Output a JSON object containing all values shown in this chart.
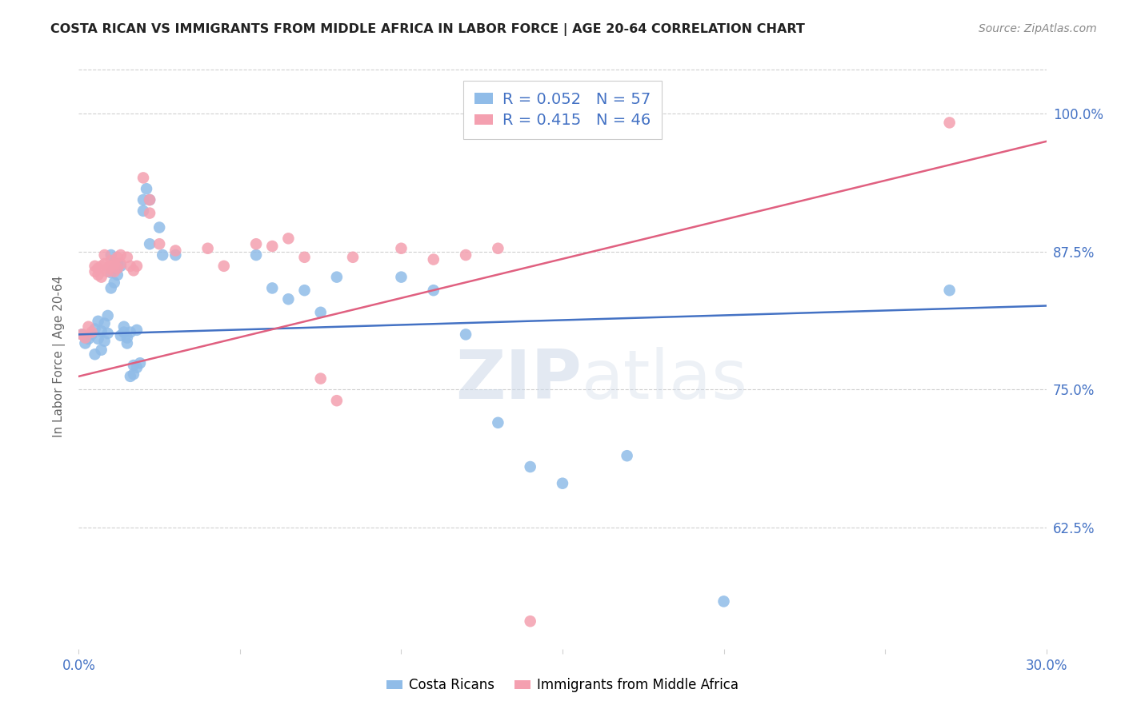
{
  "title": "COSTA RICAN VS IMMIGRANTS FROM MIDDLE AFRICA IN LABOR FORCE | AGE 20-64 CORRELATION CHART",
  "source": "Source: ZipAtlas.com",
  "ylabel": "In Labor Force | Age 20-64",
  "xlim": [
    0.0,
    0.3
  ],
  "ylim": [
    0.515,
    1.045
  ],
  "yticks": [
    0.625,
    0.75,
    0.875,
    1.0
  ],
  "ytick_labels": [
    "62.5%",
    "75.0%",
    "87.5%",
    "100.0%"
  ],
  "xticks": [
    0.0,
    0.05,
    0.1,
    0.15,
    0.2,
    0.25,
    0.3
  ],
  "xtick_labels": [
    "0.0%",
    "",
    "",
    "",
    "",
    "",
    "30.0%"
  ],
  "legend_r1": "R = 0.052",
  "legend_n1": "N = 57",
  "legend_r2": "R = 0.415",
  "legend_n2": "N = 46",
  "blue_color": "#90bce8",
  "pink_color": "#f4a0b0",
  "blue_line_color": "#4472c4",
  "pink_line_color": "#e06080",
  "blue_scatter": [
    [
      0.001,
      0.8
    ],
    [
      0.002,
      0.792
    ],
    [
      0.003,
      0.796
    ],
    [
      0.004,
      0.8
    ],
    [
      0.005,
      0.805
    ],
    [
      0.005,
      0.782
    ],
    [
      0.006,
      0.812
    ],
    [
      0.006,
      0.796
    ],
    [
      0.007,
      0.803
    ],
    [
      0.007,
      0.786
    ],
    [
      0.008,
      0.81
    ],
    [
      0.008,
      0.794
    ],
    [
      0.009,
      0.801
    ],
    [
      0.009,
      0.817
    ],
    [
      0.01,
      0.856
    ],
    [
      0.01,
      0.842
    ],
    [
      0.01,
      0.872
    ],
    [
      0.011,
      0.86
    ],
    [
      0.011,
      0.847
    ],
    [
      0.012,
      0.864
    ],
    [
      0.012,
      0.854
    ],
    [
      0.013,
      0.862
    ],
    [
      0.013,
      0.799
    ],
    [
      0.014,
      0.802
    ],
    [
      0.014,
      0.807
    ],
    [
      0.015,
      0.797
    ],
    [
      0.015,
      0.792
    ],
    [
      0.016,
      0.802
    ],
    [
      0.016,
      0.762
    ],
    [
      0.017,
      0.772
    ],
    [
      0.017,
      0.764
    ],
    [
      0.018,
      0.804
    ],
    [
      0.018,
      0.77
    ],
    [
      0.019,
      0.774
    ],
    [
      0.02,
      0.912
    ],
    [
      0.02,
      0.922
    ],
    [
      0.021,
      0.932
    ],
    [
      0.022,
      0.922
    ],
    [
      0.022,
      0.882
    ],
    [
      0.025,
      0.897
    ],
    [
      0.026,
      0.872
    ],
    [
      0.03,
      0.872
    ],
    [
      0.055,
      0.872
    ],
    [
      0.06,
      0.842
    ],
    [
      0.065,
      0.832
    ],
    [
      0.07,
      0.84
    ],
    [
      0.075,
      0.82
    ],
    [
      0.08,
      0.852
    ],
    [
      0.1,
      0.852
    ],
    [
      0.11,
      0.84
    ],
    [
      0.12,
      0.8
    ],
    [
      0.13,
      0.72
    ],
    [
      0.14,
      0.68
    ],
    [
      0.15,
      0.665
    ],
    [
      0.17,
      0.69
    ],
    [
      0.2,
      0.558
    ],
    [
      0.27,
      0.84
    ]
  ],
  "pink_scatter": [
    [
      0.001,
      0.8
    ],
    [
      0.002,
      0.797
    ],
    [
      0.003,
      0.807
    ],
    [
      0.004,
      0.802
    ],
    [
      0.005,
      0.862
    ],
    [
      0.005,
      0.857
    ],
    [
      0.006,
      0.86
    ],
    [
      0.006,
      0.854
    ],
    [
      0.007,
      0.862
    ],
    [
      0.007,
      0.852
    ],
    [
      0.008,
      0.872
    ],
    [
      0.008,
      0.864
    ],
    [
      0.009,
      0.86
    ],
    [
      0.009,
      0.857
    ],
    [
      0.01,
      0.862
    ],
    [
      0.01,
      0.867
    ],
    [
      0.011,
      0.864
    ],
    [
      0.011,
      0.857
    ],
    [
      0.012,
      0.87
    ],
    [
      0.012,
      0.86
    ],
    [
      0.013,
      0.872
    ],
    [
      0.013,
      0.864
    ],
    [
      0.015,
      0.87
    ],
    [
      0.016,
      0.862
    ],
    [
      0.017,
      0.858
    ],
    [
      0.018,
      0.862
    ],
    [
      0.02,
      0.942
    ],
    [
      0.022,
      0.922
    ],
    [
      0.022,
      0.91
    ],
    [
      0.025,
      0.882
    ],
    [
      0.03,
      0.876
    ],
    [
      0.04,
      0.878
    ],
    [
      0.045,
      0.862
    ],
    [
      0.055,
      0.882
    ],
    [
      0.06,
      0.88
    ],
    [
      0.065,
      0.887
    ],
    [
      0.07,
      0.87
    ],
    [
      0.075,
      0.76
    ],
    [
      0.08,
      0.74
    ],
    [
      0.085,
      0.87
    ],
    [
      0.1,
      0.878
    ],
    [
      0.11,
      0.868
    ],
    [
      0.12,
      0.872
    ],
    [
      0.13,
      0.878
    ],
    [
      0.14,
      0.54
    ],
    [
      0.27,
      0.992
    ]
  ],
  "blue_line": [
    [
      0.0,
      0.8
    ],
    [
      0.3,
      0.826
    ]
  ],
  "pink_line": [
    [
      0.0,
      0.762
    ],
    [
      0.3,
      0.975
    ]
  ],
  "watermark_zip": "ZIP",
  "watermark_atlas": "atlas",
  "background_color": "#ffffff",
  "grid_color": "#d0d0d0",
  "legend_text_color": "#4472c4",
  "axis_label_color": "#4472c4",
  "ylabel_color": "#666666"
}
